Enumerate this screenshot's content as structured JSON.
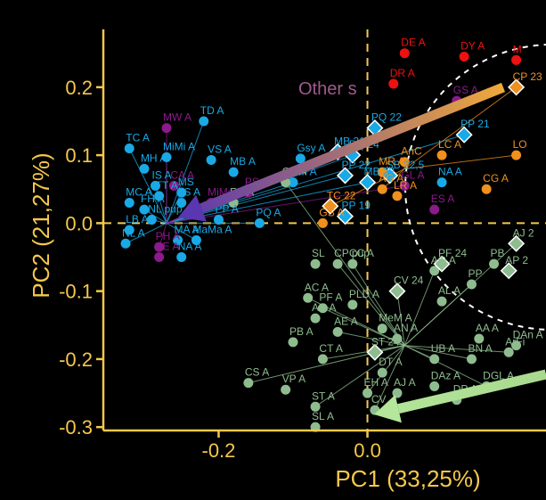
{
  "chart_data": {
    "type": "scatter",
    "title": "",
    "xlabel": "PC1 (33,25%)",
    "ylabel": "PC2 (21,27%)",
    "xlim": [
      -0.355,
      0.24
    ],
    "ylim": [
      -0.305,
      0.285
    ],
    "x_ticks": [
      {
        "v": -0.2,
        "label": "-0.2"
      },
      {
        "v": 0.0,
        "label": "0.0"
      }
    ],
    "y_ticks": [
      {
        "v": 0.2,
        "label": "0.2"
      },
      {
        "v": 0.1,
        "label": "0.1"
      },
      {
        "v": 0.0,
        "label": "0.0"
      },
      {
        "v": -0.1,
        "label": "-0.1"
      },
      {
        "v": -0.2,
        "label": "-0.2"
      },
      {
        "v": -0.3,
        "label": "-0.3"
      }
    ],
    "colors": {
      "axis": "#f5c84c",
      "blue": "#19a9e6",
      "purple": "#8b1a8b",
      "green": "#8fbc8f",
      "orange": "#f0901e",
      "red": "#ee1111"
    },
    "annotation": "Other s",
    "series": [
      {
        "group": "blue",
        "points": [
          {
            "x": -0.22,
            "y": 0.15,
            "label": "TD A"
          },
          {
            "x": -0.21,
            "y": 0.093,
            "label": "VS A"
          },
          {
            "x": -0.27,
            "y": 0.097,
            "label": "MiMi A"
          },
          {
            "x": -0.18,
            "y": 0.075,
            "label": "MB A"
          },
          {
            "x": -0.1,
            "y": 0.06,
            "label": "MM A"
          },
          {
            "x": -0.09,
            "y": 0.095,
            "label": "Gsy A"
          },
          {
            "x": -0.32,
            "y": 0.11,
            "label": "TC A"
          },
          {
            "x": -0.3,
            "y": 0.08,
            "label": "MH A"
          },
          {
            "x": -0.285,
            "y": 0.055,
            "label": "IS A"
          },
          {
            "x": -0.32,
            "y": 0.03,
            "label": "MC A"
          },
          {
            "x": -0.3,
            "y": 0.02,
            "label": "FH A"
          },
          {
            "x": -0.28,
            "y": 0.04,
            "label": "TT A"
          },
          {
            "x": -0.25,
            "y": 0.045,
            "label": "MS"
          },
          {
            "x": -0.25,
            "y": 0.03,
            "label": "LS A"
          },
          {
            "x": -0.29,
            "y": 0.005,
            "label": "NL pup"
          },
          {
            "x": -0.32,
            "y": -0.01,
            "label": "LB A"
          },
          {
            "x": -0.325,
            "y": -0.03,
            "label": "NL A"
          },
          {
            "x": -0.2,
            "y": 0.005,
            "label": "PP A"
          },
          {
            "x": -0.145,
            "y": 0.0,
            "label": "PQ A"
          },
          {
            "x": -0.255,
            "y": -0.025,
            "label": "MA A"
          },
          {
            "x": -0.23,
            "y": -0.025,
            "label": "MaMa A"
          },
          {
            "x": -0.25,
            "y": -0.05,
            "label": "NA A"
          },
          {
            "x": -0.02,
            "y": 0.1,
            "label": "PQ 24"
          },
          {
            "x": 0.03,
            "y": 0.07,
            "label": "SB 22,5"
          },
          {
            "x": 0.13,
            "y": 0.13,
            "label": "PP 21"
          },
          {
            "x": 0.1,
            "y": 0.06,
            "label": "NA A"
          },
          {
            "x": -0.04,
            "y": 0.105,
            "label": "MB 21"
          },
          {
            "x": 0.01,
            "y": 0.14,
            "label": "PQ 22"
          },
          {
            "x": -0.03,
            "y": 0.07,
            "label": "PP 22"
          },
          {
            "x": -0.03,
            "y": 0.01,
            "label": "PP 19"
          },
          {
            "x": 0.0,
            "y": 0.06,
            "label": "MB 22"
          }
        ]
      },
      {
        "group": "purple",
        "points": [
          {
            "x": -0.27,
            "y": 0.14,
            "label": "MW A"
          },
          {
            "x": -0.26,
            "y": 0.055,
            "label": "CA A"
          },
          {
            "x": -0.16,
            "y": 0.045,
            "label": "PS A"
          },
          {
            "x": -0.21,
            "y": 0.03,
            "label": "MiMe A"
          },
          {
            "x": -0.28,
            "y": -0.035,
            "label": "PH A"
          },
          {
            "x": -0.28,
            "y": -0.05,
            "label": "PE A"
          },
          {
            "x": 0.05,
            "y": 0.055,
            "label": "GL A"
          },
          {
            "x": 0.09,
            "y": 0.02,
            "label": "ES A"
          },
          {
            "x": 0.12,
            "y": 0.18,
            "label": "GS A"
          }
        ]
      },
      {
        "group": "green",
        "points": [
          {
            "x": -0.02,
            "y": -0.06,
            "label": "CC A"
          },
          {
            "x": -0.07,
            "y": -0.06,
            "label": "SL"
          },
          {
            "x": 0.04,
            "y": -0.1,
            "label": "CV 24"
          },
          {
            "x": 0.04,
            "y": -0.17,
            "label": "AN A"
          },
          {
            "x": 0.09,
            "y": -0.07,
            "label": "AO A"
          },
          {
            "x": 0.1,
            "y": -0.115,
            "label": "AL A"
          },
          {
            "x": -0.08,
            "y": -0.11,
            "label": "AC A"
          },
          {
            "x": -0.07,
            "y": -0.14,
            "label": "AC A"
          },
          {
            "x": -0.06,
            "y": -0.125,
            "label": "PF A"
          },
          {
            "x": -0.02,
            "y": -0.12,
            "label": "PLD A"
          },
          {
            "x": -0.04,
            "y": -0.16,
            "label": "AE A"
          },
          {
            "x": 0.02,
            "y": -0.155,
            "label": "MeM A"
          },
          {
            "x": 0.01,
            "y": -0.19,
            "label": "ST 24"
          },
          {
            "x": -0.1,
            "y": -0.175,
            "label": "PB A"
          },
          {
            "x": -0.06,
            "y": -0.2,
            "label": "CT A"
          },
          {
            "x": 0.02,
            "y": -0.22,
            "label": "DT A"
          },
          {
            "x": 0.0,
            "y": -0.25,
            "label": "EH A"
          },
          {
            "x": 0.04,
            "y": -0.25,
            "label": "AJ A"
          },
          {
            "x": 0.09,
            "y": -0.2,
            "label": "UB A"
          },
          {
            "x": 0.09,
            "y": -0.24,
            "label": "DAz A"
          },
          {
            "x": 0.14,
            "y": -0.2,
            "label": "BN A"
          },
          {
            "x": 0.15,
            "y": -0.17,
            "label": "AA A"
          },
          {
            "x": 0.16,
            "y": -0.24,
            "label": "DGL A"
          },
          {
            "x": 0.2,
            "y": -0.18,
            "label": "DAn A"
          },
          {
            "x": 0.19,
            "y": -0.19,
            "label": "ArFi"
          },
          {
            "x": 0.12,
            "y": -0.26,
            "label": "DP A"
          },
          {
            "x": -0.16,
            "y": -0.235,
            "label": "CS A"
          },
          {
            "x": -0.11,
            "y": -0.245,
            "label": "VP A"
          },
          {
            "x": -0.07,
            "y": -0.27,
            "label": "ST A"
          },
          {
            "x": -0.07,
            "y": -0.3,
            "label": "SL A"
          },
          {
            "x": 0.01,
            "y": -0.275,
            "label": "CV"
          },
          {
            "x": 0.17,
            "y": -0.06,
            "label": "PB"
          },
          {
            "x": 0.2,
            "y": -0.03,
            "label": "AJ 2"
          },
          {
            "x": 0.19,
            "y": -0.07,
            "label": "AP 2"
          },
          {
            "x": 0.14,
            "y": -0.09,
            "label": "PP"
          },
          {
            "x": 0.1,
            "y": -0.06,
            "label": "PF 24"
          },
          {
            "x": -0.04,
            "y": -0.06,
            "label": "CP pup"
          },
          {
            "x": -0.18,
            "y": 0.03,
            "label": "RP A"
          },
          {
            "x": -0.11,
            "y": 0.06,
            "label": "CB A"
          }
        ]
      },
      {
        "group": "orange",
        "points": [
          {
            "x": 0.05,
            "y": 0.09,
            "label": "AnC"
          },
          {
            "x": 0.1,
            "y": 0.1,
            "label": "LC A"
          },
          {
            "x": 0.2,
            "y": 0.2,
            "label": "CP 23"
          },
          {
            "x": 0.02,
            "y": 0.075,
            "label": "MR A"
          },
          {
            "x": 0.02,
            "y": 0.05,
            "label": "AG A"
          },
          {
            "x": 0.04,
            "y": 0.04,
            "label": "LR A"
          },
          {
            "x": 0.2,
            "y": 0.1,
            "label": "LO"
          },
          {
            "x": 0.16,
            "y": 0.05,
            "label": "CG A"
          },
          {
            "x": -0.05,
            "y": 0.025,
            "label": "TC 22"
          },
          {
            "x": -0.06,
            "y": 0.0,
            "label": "GS A"
          }
        ]
      },
      {
        "group": "red",
        "points": [
          {
            "x": 0.05,
            "y": 0.25,
            "label": "DE A"
          },
          {
            "x": 0.13,
            "y": 0.245,
            "label": "DY A"
          },
          {
            "x": 0.035,
            "y": 0.205,
            "label": "DR A"
          },
          {
            "x": 0.2,
            "y": 0.24,
            "label": "M"
          }
        ]
      }
    ]
  }
}
